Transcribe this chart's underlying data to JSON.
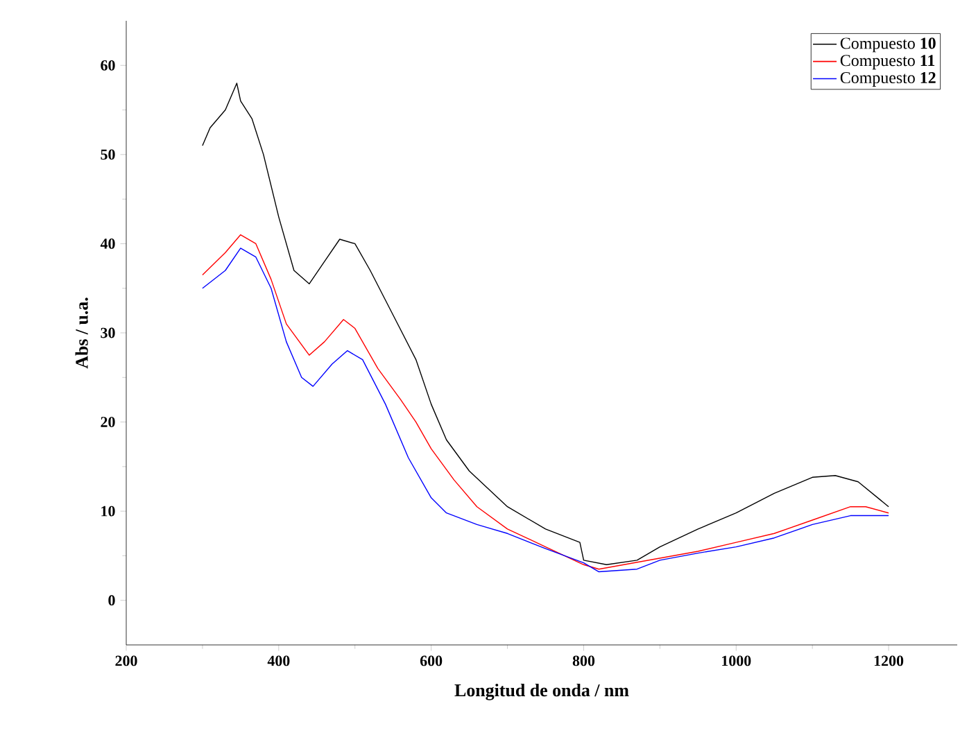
{
  "chart_data": {
    "type": "line",
    "xlabel": "Longitud de onda / nm",
    "ylabel": "Abs / u.a.",
    "xlim": [
      200,
      1290
    ],
    "ylim": [
      -5,
      65
    ],
    "xticks": [
      200,
      400,
      600,
      800,
      1000,
      1200
    ],
    "yticks": [
      0,
      10,
      20,
      30,
      40,
      50,
      60
    ],
    "legend": "top right",
    "line_style": "solid",
    "marker": "none",
    "series": [
      {
        "name": "Compuesto **10**",
        "color": "#000000",
        "x": [
          300,
          310,
          330,
          345,
          350,
          365,
          380,
          400,
          420,
          440,
          460,
          480,
          500,
          520,
          550,
          580,
          600,
          620,
          650,
          700,
          750,
          795,
          800,
          830,
          870,
          900,
          950,
          1000,
          1050,
          1100,
          1130,
          1160,
          1200
        ],
        "values": [
          51,
          53,
          55,
          58,
          56,
          54,
          50,
          43,
          37,
          35.5,
          38,
          40.5,
          40,
          37,
          32,
          27,
          22,
          18,
          14.5,
          10.5,
          8,
          6.5,
          4.5,
          4,
          4.5,
          6,
          8,
          9.8,
          12,
          13.8,
          14,
          13.3,
          10.5
        ]
      },
      {
        "name": "Compuesto **11**",
        "color": "#ff0000",
        "x": [
          300,
          330,
          350,
          370,
          390,
          410,
          440,
          460,
          485,
          500,
          530,
          560,
          580,
          600,
          630,
          660,
          700,
          750,
          800,
          820,
          870,
          900,
          950,
          1000,
          1050,
          1100,
          1150,
          1170,
          1200
        ],
        "values": [
          36.5,
          39,
          41,
          40,
          36,
          31,
          27.5,
          29,
          31.5,
          30.5,
          26,
          22.5,
          20,
          17,
          13.5,
          10.5,
          8,
          6,
          4,
          3.5,
          null,
          null,
          5.5,
          6.5,
          7.5,
          9,
          10.5,
          10.5,
          9.8
        ]
      },
      {
        "name": "Compuesto **12**",
        "color": "#0000ff",
        "x": [
          300,
          330,
          350,
          370,
          390,
          410,
          430,
          445,
          470,
          490,
          510,
          540,
          570,
          600,
          620,
          660,
          700,
          750,
          800,
          820,
          870,
          900,
          950,
          1000,
          1050,
          1100,
          1150,
          1200
        ],
        "values": [
          35,
          37,
          39.5,
          38.5,
          35,
          29,
          25,
          24,
          26.5,
          28,
          27,
          22,
          16,
          11.5,
          9.8,
          8.5,
          7.5,
          5.8,
          4.2,
          3.2,
          3.5,
          4.5,
          5.3,
          6,
          7,
          8.5,
          9.5,
          9.5
        ]
      }
    ]
  }
}
